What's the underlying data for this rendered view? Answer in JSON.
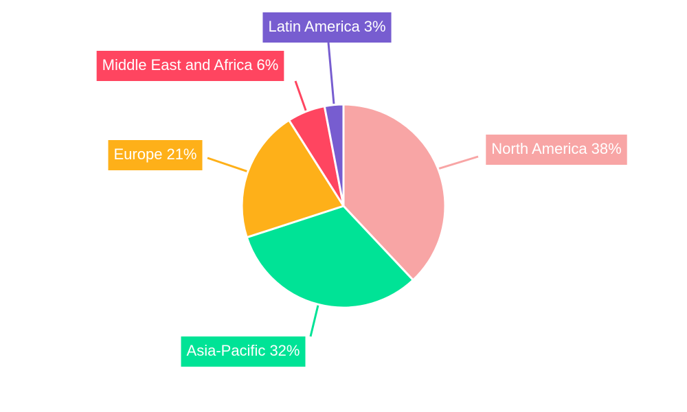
{
  "chart_data": {
    "type": "pie",
    "categories": [
      "North America",
      "Asia-Pacific",
      "Europe",
      "Middle East and Africa",
      "Latin America"
    ],
    "values": [
      38,
      32,
      21,
      6,
      3
    ],
    "value_labels": [
      "38%",
      "32%",
      "21%",
      "6%",
      "3%"
    ],
    "colors": [
      "#f8a5a5",
      "#00e396",
      "#feb019",
      "#ff4560",
      "#775dd0"
    ]
  }
}
